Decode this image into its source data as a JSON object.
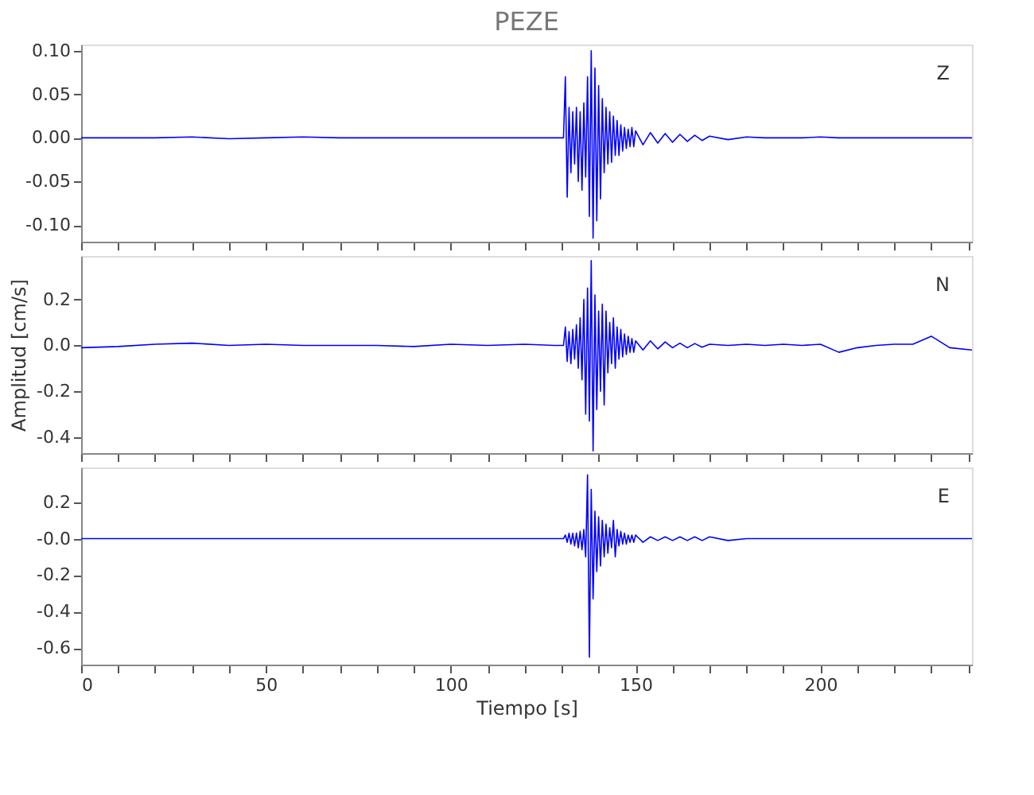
{
  "chart_data": [
    {
      "type": "line",
      "title": "PEZE",
      "annotations": [
        "Z"
      ],
      "tick_labels": "y",
      "grid": false,
      "line_style": "solid",
      "marker": "none",
      "x": [
        0,
        10,
        20,
        30,
        40,
        50,
        60,
        70,
        80,
        90,
        100,
        110,
        120,
        128,
        130.5,
        131,
        131.5,
        132,
        132.5,
        133,
        133.5,
        134,
        134.5,
        135,
        135.5,
        136,
        136.5,
        137,
        137.5,
        138,
        138.5,
        139,
        139.5,
        140,
        140.5,
        141,
        141.5,
        142,
        142.5,
        143,
        143.5,
        144,
        144.5,
        145,
        145.5,
        146,
        146.5,
        147,
        147.5,
        148,
        148.5,
        149,
        149.5,
        150,
        152,
        154,
        156,
        158,
        160,
        162,
        164,
        166,
        168,
        170,
        175,
        180,
        185,
        190,
        195,
        200,
        205,
        210,
        215,
        220,
        225,
        230,
        235,
        241
      ],
      "series": [
        {
          "color": "#0000ff",
          "values": [
            0,
            0,
            0,
            0.001,
            -0.001,
            0,
            0.001,
            0,
            0,
            0,
            0,
            0,
            0,
            0,
            0,
            0.07,
            -0.068,
            0.035,
            -0.04,
            0.03,
            -0.03,
            0.035,
            -0.05,
            0.03,
            -0.06,
            0.04,
            -0.045,
            0.07,
            -0.09,
            0.1,
            -0.115,
            0.08,
            -0.095,
            0.06,
            -0.07,
            0.045,
            -0.04,
            0.035,
            -0.03,
            0.03,
            -0.028,
            0.025,
            -0.02,
            0.02,
            -0.02,
            0.015,
            -0.015,
            0.012,
            -0.012,
            0.01,
            -0.01,
            0.012,
            -0.01,
            0.008,
            -0.008,
            0.006,
            -0.006,
            0.005,
            -0.005,
            0.004,
            -0.004,
            0.003,
            -0.003,
            0.002,
            -0.002,
            0.001,
            0,
            0,
            0,
            0.001,
            0,
            0,
            0,
            0,
            0,
            0,
            0,
            0
          ]
        }
      ],
      "xlim": [
        0,
        241
      ],
      "xticks": [
        0,
        {
          "value": 10,
          "label": null
        },
        {
          "value": 20,
          "label": null
        },
        {
          "value": 30,
          "label": null
        },
        {
          "value": 40,
          "label": null
        },
        50,
        {
          "value": 60,
          "label": null
        },
        {
          "value": 70,
          "label": null
        },
        {
          "value": 80,
          "label": null
        },
        {
          "value": 90,
          "label": null
        },
        100,
        {
          "value": 110,
          "label": null
        },
        {
          "value": 120,
          "label": null
        },
        {
          "value": 130,
          "label": null
        },
        {
          "value": 140,
          "label": null
        },
        150,
        {
          "value": 160,
          "label": null
        },
        {
          "value": 170,
          "label": null
        },
        {
          "value": 180,
          "label": null
        },
        {
          "value": 190,
          "label": null
        },
        200,
        {
          "value": 210,
          "label": null
        },
        {
          "value": 220,
          "label": null
        },
        {
          "value": 230,
          "label": null
        },
        {
          "value": 240,
          "label": null
        }
      ],
      "ylim": [
        -0.119,
        0.107
      ],
      "yticks": [
        {
          "value": 0.1,
          "label": "0.10"
        },
        {
          "value": 0.05,
          "label": "0.05"
        },
        {
          "value": 0,
          "label": "0.00"
        },
        {
          "value": -0.05,
          "label": "-0.05"
        },
        {
          "value": -0.1,
          "label": "-0.10"
        }
      ]
    },
    {
      "type": "line",
      "ylabel": "Amplitud [cm/s]",
      "annotations": [
        "N"
      ],
      "tick_labels": "y",
      "grid": false,
      "line_style": "solid",
      "marker": "none",
      "x": [
        0,
        10,
        20,
        30,
        40,
        50,
        60,
        70,
        80,
        90,
        100,
        110,
        120,
        128,
        130.5,
        131,
        131.5,
        132,
        132.5,
        133,
        133.5,
        134,
        134.5,
        135,
        135.5,
        136,
        136.5,
        137,
        137.5,
        138,
        138.5,
        139,
        139.5,
        140,
        140.5,
        141,
        141.5,
        142,
        142.5,
        143,
        143.5,
        144,
        144.5,
        145,
        145.5,
        146,
        146.5,
        147,
        147.5,
        148,
        148.5,
        149,
        149.5,
        150,
        152,
        154,
        156,
        158,
        160,
        162,
        164,
        166,
        168,
        170,
        175,
        180,
        185,
        190,
        195,
        200,
        205,
        210,
        215,
        220,
        225,
        230,
        235,
        241
      ],
      "series": [
        {
          "color": "#0000ff",
          "values": [
            -0.01,
            -0.005,
            0.005,
            0.01,
            0,
            0.005,
            0,
            0,
            0,
            -0.005,
            0.005,
            0,
            0.005,
            0,
            0,
            0.08,
            -0.07,
            0.06,
            -0.08,
            0.07,
            -0.06,
            0.09,
            -0.1,
            0.12,
            -0.15,
            0.2,
            -0.3,
            0.25,
            -0.33,
            0.37,
            -0.46,
            0.22,
            -0.28,
            0.15,
            -0.2,
            0.18,
            -0.26,
            0.15,
            -0.12,
            0.1,
            -0.08,
            0.12,
            -0.1,
            0.08,
            -0.06,
            0.07,
            -0.05,
            0.05,
            -0.04,
            0.04,
            -0.03,
            0.03,
            -0.03,
            0.02,
            -0.02,
            0.02,
            -0.015,
            0.015,
            -0.01,
            0.01,
            -0.01,
            0.008,
            -0.008,
            0.005,
            0,
            0.005,
            0,
            0.005,
            0,
            0.005,
            -0.03,
            -0.01,
            0,
            0.005,
            0.005,
            0.04,
            -0.01,
            -0.02
          ]
        }
      ],
      "xlim": [
        0,
        241
      ],
      "xticks": [
        0,
        {
          "value": 10,
          "label": null
        },
        {
          "value": 20,
          "label": null
        },
        {
          "value": 30,
          "label": null
        },
        {
          "value": 40,
          "label": null
        },
        50,
        {
          "value": 60,
          "label": null
        },
        {
          "value": 70,
          "label": null
        },
        {
          "value": 80,
          "label": null
        },
        {
          "value": 90,
          "label": null
        },
        100,
        {
          "value": 110,
          "label": null
        },
        {
          "value": 120,
          "label": null
        },
        {
          "value": 130,
          "label": null
        },
        {
          "value": 140,
          "label": null
        },
        150,
        {
          "value": 160,
          "label": null
        },
        {
          "value": 170,
          "label": null
        },
        {
          "value": 180,
          "label": null
        },
        {
          "value": 190,
          "label": null
        },
        200,
        {
          "value": 210,
          "label": null
        },
        {
          "value": 220,
          "label": null
        },
        {
          "value": 230,
          "label": null
        },
        {
          "value": 240,
          "label": null
        }
      ],
      "ylim": [
        -0.47,
        0.39
      ],
      "yticks": [
        {
          "value": 0.2,
          "label": "0.2"
        },
        {
          "value": 0,
          "label": "0.0"
        },
        {
          "value": -0.2,
          "label": "-0.2"
        },
        {
          "value": -0.4,
          "label": "-0.4"
        }
      ]
    },
    {
      "type": "line",
      "xlabel": "Tiempo [s]",
      "annotations": [
        "E"
      ],
      "grid": false,
      "line_style": "solid",
      "marker": "none",
      "x": [
        0,
        10,
        20,
        30,
        40,
        50,
        60,
        70,
        80,
        90,
        100,
        110,
        120,
        128,
        130.5,
        131,
        131.5,
        132,
        132.5,
        133,
        133.5,
        134,
        134.5,
        135,
        135.5,
        136,
        136.5,
        137,
        137.5,
        138,
        138.5,
        139,
        139.5,
        140,
        140.5,
        141,
        141.5,
        142,
        142.5,
        143,
        143.5,
        144,
        144.5,
        145,
        145.5,
        146,
        146.5,
        147,
        147.5,
        148,
        148.5,
        149,
        149.5,
        150,
        152,
        154,
        156,
        158,
        160,
        162,
        164,
        166,
        168,
        170,
        175,
        180,
        185,
        190,
        195,
        200,
        205,
        210,
        215,
        220,
        225,
        230,
        235,
        241
      ],
      "series": [
        {
          "color": "#0000ff",
          "values": [
            0,
            0,
            0,
            0,
            0,
            0,
            0,
            0,
            0,
            0,
            0,
            0,
            0,
            0,
            0,
            0.02,
            -0.02,
            0.03,
            -0.03,
            0.03,
            -0.04,
            0.03,
            -0.05,
            0.04,
            -0.06,
            0.05,
            -0.1,
            0.35,
            -0.65,
            0.27,
            -0.33,
            0.15,
            -0.18,
            0.12,
            -0.15,
            0.1,
            -0.1,
            0.08,
            -0.08,
            0.06,
            -0.05,
            0.1,
            -0.1,
            0.05,
            -0.04,
            0.04,
            -0.03,
            0.03,
            -0.03,
            0.02,
            -0.02,
            0.02,
            -0.02,
            0.02,
            -0.02,
            0.01,
            -0.01,
            0.01,
            -0.01,
            0.01,
            -0.01,
            0.01,
            -0.01,
            0.01,
            -0.01,
            0,
            0,
            0,
            0,
            0,
            0,
            0,
            0,
            0,
            0,
            0,
            0,
            0
          ]
        }
      ],
      "xlim": [
        0,
        241
      ],
      "xticks": [
        0,
        {
          "value": 10,
          "label": null
        },
        {
          "value": 20,
          "label": null
        },
        {
          "value": 30,
          "label": null
        },
        {
          "value": 40,
          "label": null
        },
        50,
        {
          "value": 60,
          "label": null
        },
        {
          "value": 70,
          "label": null
        },
        {
          "value": 80,
          "label": null
        },
        {
          "value": 90,
          "label": null
        },
        100,
        {
          "value": 110,
          "label": null
        },
        {
          "value": 120,
          "label": null
        },
        {
          "value": 130,
          "label": null
        },
        {
          "value": 140,
          "label": null
        },
        150,
        {
          "value": 160,
          "label": null
        },
        {
          "value": 170,
          "label": null
        },
        {
          "value": 180,
          "label": null
        },
        {
          "value": 190,
          "label": null
        },
        200,
        {
          "value": 210,
          "label": null
        },
        {
          "value": 220,
          "label": null
        },
        {
          "value": 230,
          "label": null
        },
        {
          "value": 240,
          "label": null
        }
      ],
      "ylim": [
        -0.69,
        0.39
      ],
      "yticks": [
        {
          "value": 0.2,
          "label": "0.2"
        },
        {
          "value": 0,
          "label": "-0.0"
        },
        {
          "value": -0.2,
          "label": "-0.2"
        },
        {
          "value": -0.4,
          "label": "-0.4"
        },
        {
          "value": -0.6,
          "label": "-0.6"
        }
      ]
    }
  ]
}
